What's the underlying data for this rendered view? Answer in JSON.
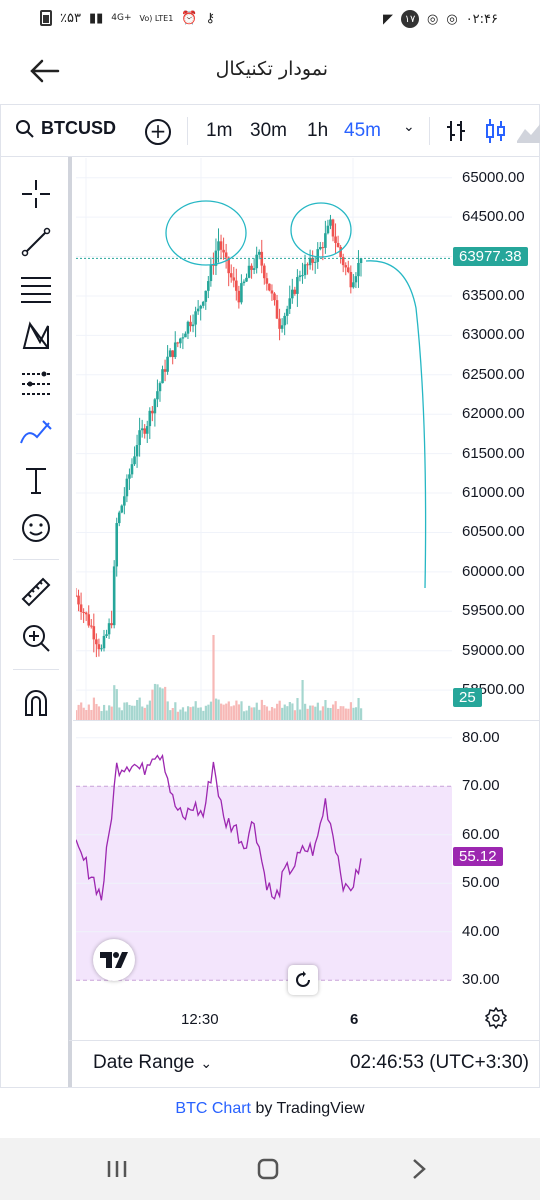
{
  "status_bar": {
    "time": "۰۲:۴۶",
    "battery": "٪۵۳",
    "network": "4G+",
    "volte": "Vo) LTE1",
    "notification_count": "۱۷"
  },
  "app": {
    "title": "نمودار تکنیکال"
  },
  "toolbar": {
    "symbol": "BTCUSD",
    "timeframes": [
      "1m",
      "30m",
      "1h",
      "45m"
    ],
    "active_timeframe": "45m"
  },
  "price_axis": {
    "labels": [
      "65000.00",
      "64500.00",
      "64000.00",
      "63500.00",
      "63000.00",
      "62500.00",
      "62000.00",
      "61500.00",
      "61000.00",
      "60500.00",
      "60000.00",
      "59500.00",
      "59000.00",
      "58500.00"
    ],
    "current_price": "63977.38",
    "volume_tag": "25",
    "current_price_color": "#26a69a"
  },
  "rsi_axis": {
    "labels": [
      "80.00",
      "70.00",
      "60.00",
      "50.00",
      "40.00",
      "30.00"
    ],
    "current_value": "55.12",
    "color": "#9c27b0"
  },
  "time_axis": {
    "labels": [
      "12:30",
      "6"
    ]
  },
  "bottom": {
    "date_range_label": "Date Range",
    "clock": "02:46:53 (UTC+3:30)"
  },
  "attribution": {
    "link_text": "BTC Chart",
    "rest": "by TradingView"
  },
  "colors": {
    "up": "#26a69a",
    "down": "#ef5350",
    "accent": "#2962ff",
    "rsi_band": "#f3e5fc",
    "drawing": "#26b7c4"
  },
  "chart_data": {
    "type": "candlestick",
    "ylim": [
      58400,
      65250
    ],
    "rsi_ylim": [
      28,
      82
    ],
    "candles": [],
    "rsi": []
  }
}
